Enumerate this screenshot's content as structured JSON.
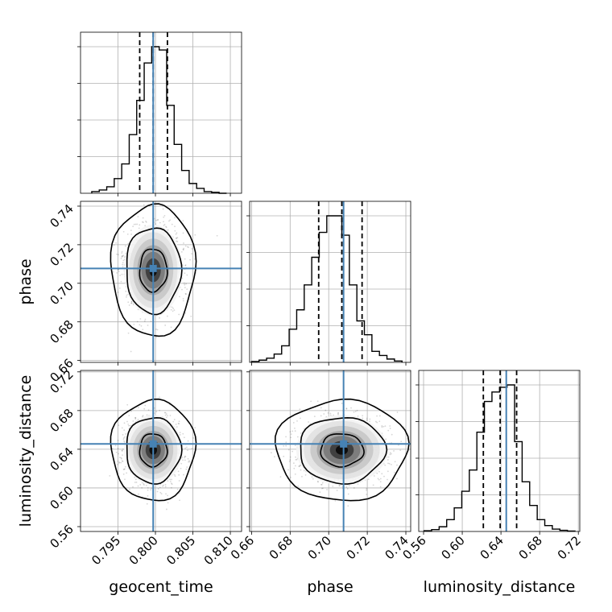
{
  "chart_data": {
    "type": "corner",
    "parameters": [
      "geocent_time",
      "phase",
      "luminosity_distance"
    ],
    "axis_labels": {
      "geocent_time": "geocent_time",
      "phase": "phase",
      "luminosity_distance": "luminosity_distance"
    },
    "ranges": {
      "geocent_time": [
        0.79,
        0.8115
      ],
      "phase": [
        0.659,
        0.7425
      ],
      "luminosity_distance": [
        0.555,
        0.7215
      ]
    },
    "ticks": {
      "geocent_time": [
        0.795,
        0.8,
        0.805,
        0.81
      ],
      "phase": [
        0.66,
        0.68,
        0.7,
        0.72,
        0.74
      ],
      "luminosity_distance": [
        0.56,
        0.6,
        0.64,
        0.68,
        0.72
      ]
    },
    "tick_labels": {
      "geocent_time": [
        "0.795",
        "0.800",
        "0.805",
        "0.810"
      ],
      "phase": [
        "0.66",
        "0.68",
        "0.70",
        "0.72",
        "0.74"
      ],
      "luminosity_distance": [
        "0.56",
        "0.60",
        "0.64",
        "0.68",
        "0.72"
      ]
    },
    "truths": {
      "geocent_time": 0.7997,
      "phase": 0.7077,
      "luminosity_distance": 0.6455
    },
    "truth_color": "#4682b4",
    "quantiles": {
      "geocent_time": [
        0.7979,
        0.7997,
        0.8016
      ],
      "phase": [
        0.6948,
        0.7068,
        0.7173
      ],
      "luminosity_distance": [
        0.6218,
        0.6392,
        0.6562
      ]
    },
    "histograms": {
      "geocent_time": {
        "bin_start": 0.7915,
        "bin_width": 0.001,
        "counts": [
          0.5,
          1,
          2,
          4.5,
          9,
          18,
          28.5,
          40,
          45,
          44,
          27,
          15,
          7,
          3,
          1.5,
          0.5,
          0.3,
          0
        ]
      },
      "phase": {
        "bin_start": 0.66,
        "bin_width": 0.0039,
        "counts": [
          0.3,
          0.8,
          1.5,
          3,
          6,
          12,
          19,
          28,
          38,
          47,
          53,
          53,
          46,
          28,
          15,
          10,
          4,
          2.5,
          1.2,
          0.5
        ]
      },
      "luminosity_distance": {
        "bin_start": 0.5605,
        "bin_width": 0.0078,
        "counts": [
          0.3,
          0.8,
          2,
          5,
          10,
          17,
          26,
          42,
          55,
          59,
          61,
          62,
          38,
          21,
          11,
          5,
          2.5,
          1,
          0.5,
          0.2
        ]
      }
    },
    "contour_levels": [
      "39%",
      "86%",
      "99%"
    ],
    "grid": true,
    "legend": "none"
  }
}
